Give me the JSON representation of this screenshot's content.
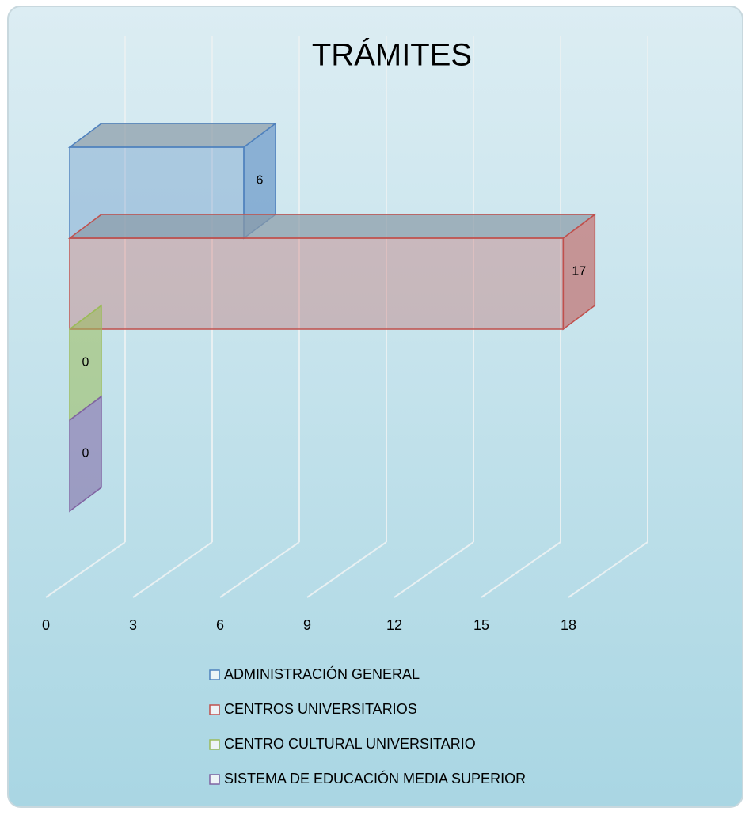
{
  "chart_data": {
    "type": "bar",
    "orientation": "horizontal",
    "title": "TRÁMITES",
    "categories": [
      null
    ],
    "series": [
      {
        "name": "ADMINISTRACIÓN GENERAL",
        "color": "#4f81bd",
        "values": [
          6
        ]
      },
      {
        "name": "CENTROS UNIVERSITARIOS",
        "color": "#c0504d",
        "values": [
          17
        ]
      },
      {
        "name": "CENTRO CULTURAL UNIVERSITARIO",
        "color": "#9bbb59",
        "values": [
          0
        ]
      },
      {
        "name": "SISTEMA DE EDUCACIÓN MEDIA SUPERIOR",
        "color": "#8064a2",
        "values": [
          0
        ]
      }
    ],
    "xlim": [
      0,
      18
    ],
    "xticks": [
      0,
      3,
      6,
      9,
      12,
      15,
      18
    ],
    "grid": true,
    "legend": "bottom"
  }
}
